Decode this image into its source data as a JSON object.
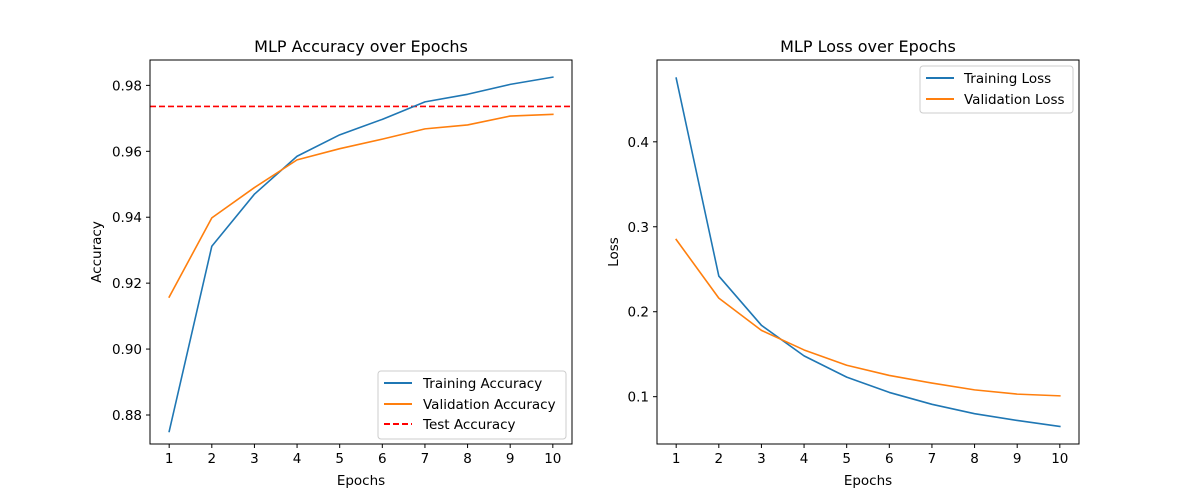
{
  "chart_data": [
    {
      "type": "line",
      "title": "MLP Accuracy over Epochs",
      "xlabel": "Epochs",
      "ylabel": "Accuracy",
      "x": [
        1,
        2,
        3,
        4,
        5,
        6,
        7,
        8,
        9,
        10
      ],
      "xlim": [
        0.55,
        10.45
      ],
      "ylim": [
        0.8712,
        0.9877
      ],
      "xticks": [
        "1",
        "2",
        "3",
        "4",
        "5",
        "6",
        "7",
        "8",
        "9",
        "10"
      ],
      "yticks": [
        {
          "value": 0.88,
          "label": "0.88"
        },
        {
          "value": 0.9,
          "label": "0.90"
        },
        {
          "value": 0.92,
          "label": "0.92"
        },
        {
          "value": 0.94,
          "label": "0.94"
        },
        {
          "value": 0.96,
          "label": "0.96"
        },
        {
          "value": 0.98,
          "label": "0.98"
        }
      ],
      "series": [
        {
          "name": "Training Accuracy",
          "color": "#1f77b4",
          "values": [
            0.875,
            0.9312,
            0.947,
            0.9585,
            0.965,
            0.9697,
            0.975,
            0.9773,
            0.9803,
            0.9825
          ]
        },
        {
          "name": "Validation Accuracy",
          "color": "#ff7f0e",
          "values": [
            0.9158,
            0.9398,
            0.949,
            0.9574,
            0.9608,
            0.9637,
            0.9668,
            0.968,
            0.9707,
            0.9712
          ]
        }
      ],
      "hlines": [
        {
          "name": "Test Accuracy",
          "color": "#ff0000",
          "value": 0.9736,
          "style": "dashed"
        }
      ],
      "grid": false,
      "legend": "lower right"
    },
    {
      "type": "line",
      "title": "MLP Loss over Epochs",
      "xlabel": "Epochs",
      "ylabel": "Loss",
      "x": [
        1,
        2,
        3,
        4,
        5,
        6,
        7,
        8,
        9,
        10
      ],
      "xlim": [
        0.55,
        10.45
      ],
      "ylim": [
        0.0443,
        0.4963
      ],
      "xticks": [
        "1",
        "2",
        "3",
        "4",
        "5",
        "6",
        "7",
        "8",
        "9",
        "10"
      ],
      "yticks": [
        {
          "value": 0.1,
          "label": "0.1"
        },
        {
          "value": 0.2,
          "label": "0.2"
        },
        {
          "value": 0.3,
          "label": "0.3"
        },
        {
          "value": 0.4,
          "label": "0.4"
        }
      ],
      "series": [
        {
          "name": "Training Loss",
          "color": "#1f77b4",
          "values": [
            0.475,
            0.242,
            0.184,
            0.148,
            0.123,
            0.105,
            0.091,
            0.08,
            0.072,
            0.065
          ]
        },
        {
          "name": "Validation Loss",
          "color": "#ff7f0e",
          "values": [
            0.285,
            0.216,
            0.178,
            0.155,
            0.137,
            0.125,
            0.116,
            0.108,
            0.103,
            0.101
          ]
        }
      ],
      "hlines": [],
      "grid": false,
      "legend": "upper right"
    }
  ]
}
